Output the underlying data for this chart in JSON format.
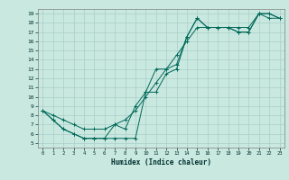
{
  "title": "",
  "xlabel": "Humidex (Indice chaleur)",
  "xlim": [
    -0.5,
    23.5
  ],
  "ylim": [
    4.5,
    19.5
  ],
  "xticks": [
    0,
    1,
    2,
    3,
    4,
    5,
    6,
    7,
    8,
    9,
    10,
    11,
    12,
    13,
    14,
    15,
    16,
    17,
    18,
    19,
    20,
    21,
    22,
    23
  ],
  "yticks": [
    5,
    6,
    7,
    8,
    9,
    10,
    11,
    12,
    13,
    14,
    15,
    16,
    17,
    18,
    19
  ],
  "bg_color": "#c9e8e0",
  "grid_color": "#a8cfc8",
  "line_color": "#006858",
  "line1_x": [
    0,
    1,
    2,
    3,
    4,
    5,
    6,
    7,
    8,
    9,
    10,
    11,
    12,
    13,
    14,
    15,
    16,
    17,
    18,
    19,
    20,
    21,
    22,
    23
  ],
  "line1_y": [
    8.5,
    7.5,
    6.5,
    6.0,
    5.5,
    5.5,
    5.5,
    5.5,
    5.5,
    5.5,
    10.5,
    10.5,
    12.5,
    13.0,
    16.5,
    18.5,
    17.5,
    17.5,
    17.5,
    17.0,
    17.0,
    19.0,
    18.5,
    18.5
  ],
  "line2_x": [
    0,
    1,
    2,
    3,
    4,
    5,
    6,
    7,
    8,
    9,
    10,
    11,
    12,
    13,
    14,
    15,
    16,
    17,
    18,
    19,
    20,
    21,
    22,
    23
  ],
  "line2_y": [
    8.5,
    7.5,
    6.5,
    6.0,
    5.5,
    5.5,
    5.5,
    7.0,
    6.5,
    9.0,
    10.5,
    13.0,
    13.0,
    13.5,
    16.5,
    18.5,
    17.5,
    17.5,
    17.5,
    17.0,
    17.0,
    19.0,
    19.0,
    18.5
  ],
  "line3_x": [
    0,
    1,
    2,
    3,
    4,
    5,
    6,
    7,
    8,
    9,
    10,
    11,
    12,
    13,
    14,
    15,
    16,
    17,
    18,
    19,
    20,
    21,
    22,
    23
  ],
  "line3_y": [
    8.5,
    8.0,
    7.5,
    7.0,
    6.5,
    6.5,
    6.5,
    7.0,
    7.5,
    8.5,
    10.0,
    11.5,
    13.0,
    14.5,
    16.0,
    17.5,
    17.5,
    17.5,
    17.5,
    17.5,
    17.5,
    19.0,
    19.0,
    18.5
  ]
}
